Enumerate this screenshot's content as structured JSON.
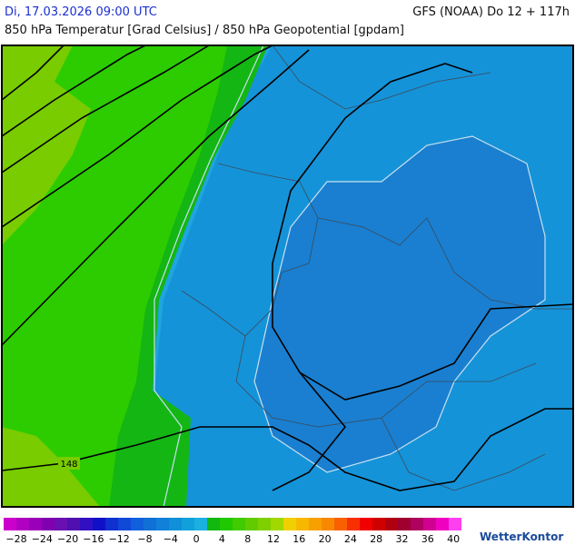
{
  "header": {
    "datetime": "Di, 17.03.2026 09:00 UTC",
    "model": "GFS (NOAA) Do 12 + 117h",
    "subtitle": "850 hPa Temperatur [Grad Celsius] / 850 hPa Geopotential [gpdam]"
  },
  "map": {
    "contour_label": "148"
  },
  "colorbar": {
    "labels": [
      "−28",
      "−24",
      "−20",
      "−16",
      "−12",
      "−8",
      "−4",
      "0",
      "4",
      "8",
      "12",
      "16",
      "20",
      "24",
      "28",
      "32",
      "36",
      "40"
    ]
  },
  "brand": "WetterKontor"
}
